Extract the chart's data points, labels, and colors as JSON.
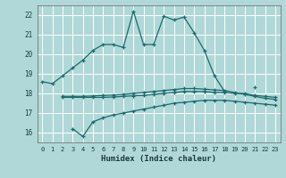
{
  "title": "",
  "xlabel": "Humidex (Indice chaleur)",
  "xlim": [
    -0.5,
    23.5
  ],
  "ylim": [
    15.5,
    22.5
  ],
  "yticks": [
    16,
    17,
    18,
    19,
    20,
    21,
    22
  ],
  "xticks": [
    0,
    1,
    2,
    3,
    4,
    5,
    6,
    7,
    8,
    9,
    10,
    11,
    12,
    13,
    14,
    15,
    16,
    17,
    18,
    19,
    20,
    21,
    22,
    23
  ],
  "bg_color": "#b0d8d8",
  "grid_color": "#ffffff",
  "line_color": "#1a6b6b",
  "lines": [
    {
      "x": [
        0,
        1,
        2,
        3,
        4,
        5,
        6,
        7,
        8,
        9,
        10,
        11,
        12,
        13,
        14,
        15,
        16,
        17,
        18,
        19,
        20,
        21
      ],
      "y": [
        18.6,
        18.5,
        18.9,
        19.3,
        19.7,
        20.2,
        20.5,
        20.5,
        20.35,
        22.2,
        20.5,
        20.5,
        21.95,
        21.75,
        21.9,
        21.1,
        20.2,
        18.9,
        18.1,
        null,
        null,
        18.3
      ]
    },
    {
      "x": [
        2,
        3,
        4,
        5,
        6,
        7,
        8,
        9,
        10,
        11,
        12,
        13,
        14,
        15,
        16,
        17,
        18,
        19,
        20,
        21,
        22,
        23
      ],
      "y": [
        17.8,
        17.8,
        17.8,
        17.8,
        17.8,
        17.82,
        17.85,
        17.88,
        17.9,
        17.95,
        18.0,
        18.05,
        18.1,
        18.1,
        18.1,
        18.05,
        18.05,
        18.0,
        18.0,
        17.9,
        17.85,
        17.8
      ]
    },
    {
      "x": [
        3,
        4,
        5,
        6,
        7,
        8,
        9,
        10,
        11,
        12,
        13,
        14,
        15,
        16,
        17,
        18,
        19,
        20,
        21,
        22,
        23
      ],
      "y": [
        16.2,
        15.8,
        16.55,
        16.75,
        16.9,
        17.0,
        17.1,
        17.2,
        17.3,
        17.4,
        17.5,
        17.55,
        17.6,
        17.65,
        17.65,
        17.65,
        17.6,
        17.55,
        17.5,
        17.45,
        17.4
      ]
    },
    {
      "x": [
        2,
        3,
        4,
        5,
        6,
        7,
        8,
        9,
        10,
        11,
        12,
        13,
        14,
        15,
        16,
        17,
        18,
        19,
        20,
        21,
        22,
        23
      ],
      "y": [
        17.85,
        17.85,
        17.85,
        17.87,
        17.9,
        17.92,
        17.95,
        18.0,
        18.05,
        18.1,
        18.15,
        18.2,
        18.25,
        18.25,
        18.22,
        18.18,
        18.15,
        18.05,
        17.95,
        17.85,
        17.75,
        17.7
      ]
    }
  ]
}
